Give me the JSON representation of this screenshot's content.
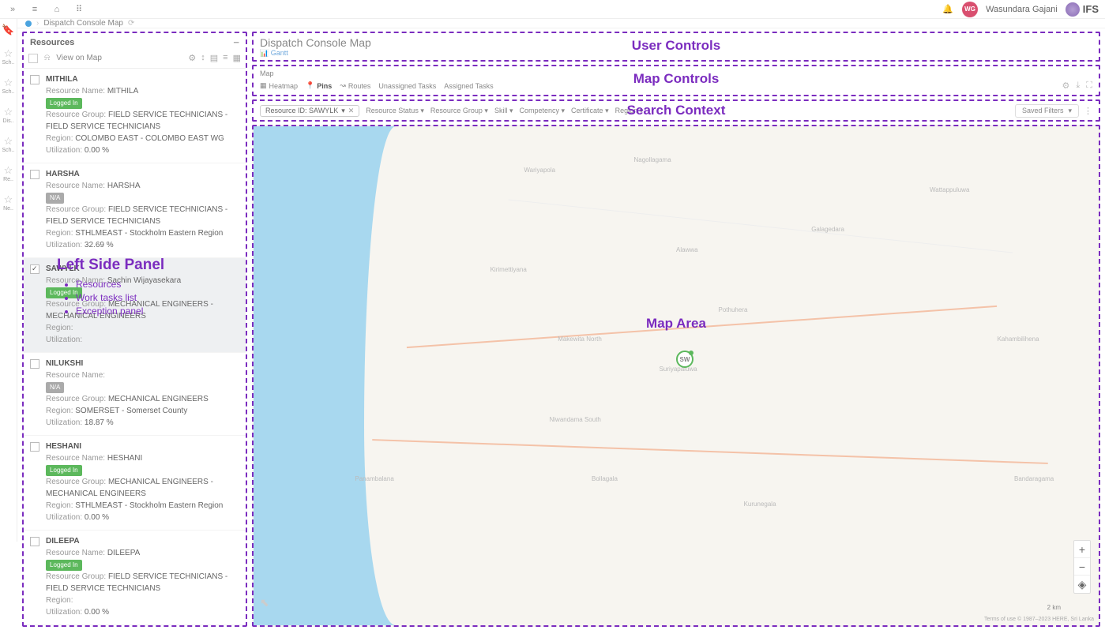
{
  "header": {
    "user_initials": "WG",
    "user_name": "Wasundara Gajani",
    "brand": "IFS"
  },
  "rail": {
    "items": [
      "Sch..",
      "Sch..",
      "Dis..",
      "Sch..",
      "Re..",
      "Ne.."
    ]
  },
  "breadcrumb": {
    "page": "Dispatch Console Map"
  },
  "left_panel": {
    "title": "Resources",
    "view_on_map": "View on Map",
    "resources": [
      {
        "name": "MITHILA",
        "resource_name": "MITHILA",
        "status": "Logged In",
        "status_color": "green",
        "group": "FIELD SERVICE TECHNICIANS - FIELD SERVICE TECHNICIANS",
        "region": "COLOMBO EAST - COLOMBO EAST WG",
        "utilization": "0.00 %",
        "checked": false
      },
      {
        "name": "HARSHA",
        "resource_name": "HARSHA",
        "status": "N/A",
        "status_color": "gray",
        "group": "FIELD SERVICE TECHNICIANS - FIELD SERVICE TECHNICIANS",
        "region": "STHLMEAST - Stockholm Eastern Region",
        "utilization": "32.69 %",
        "checked": false
      },
      {
        "name": "SAWYLK",
        "resource_name": "Sachin Wijayasekara",
        "status": "Logged In",
        "status_color": "green",
        "group": "MECHANICAL ENGINEERS - MECHANICAL ENGINEERS",
        "region": "",
        "utilization": "",
        "checked": true
      },
      {
        "name": "NILUKSHI",
        "resource_name": "",
        "status": "N/A",
        "status_color": "gray",
        "group": "MECHANICAL ENGINEERS",
        "region": "SOMERSET - Somerset County",
        "utilization": "18.87 %",
        "checked": false
      },
      {
        "name": "HESHANI",
        "resource_name": "HESHANI",
        "status": "Logged In",
        "status_color": "green",
        "group": "MECHANICAL ENGINEERS - MECHANICAL ENGINEERS",
        "region": "STHLMEAST - Stockholm Eastern Region",
        "utilization": "0.00 %",
        "checked": false
      },
      {
        "name": "DILEEPA",
        "resource_name": "DILEEPA",
        "status": "Logged In",
        "status_color": "green",
        "group": "FIELD SERVICE TECHNICIANS - FIELD SERVICE TECHNICIANS",
        "region": "",
        "utilization": "0.00 %",
        "checked": false
      }
    ]
  },
  "sections": {
    "user_controls_label": "User Controls",
    "map_controls_label": "Map Controls",
    "search_context_label": "Search Context",
    "map_area_label": "Map Area",
    "left_panel_label": "Left Side Panel",
    "left_panel_items": [
      "Resources",
      "Work tasks list",
      "Exception panel"
    ]
  },
  "user_controls": {
    "title": "Dispatch Console Map",
    "gantt_link": "Gantt"
  },
  "map_controls": {
    "tab": "Map",
    "buttons": {
      "heatmap": "Heatmap",
      "pins": "Pins",
      "routes": "Routes",
      "unassigned": "Unassigned Tasks",
      "assigned": "Assigned Tasks"
    }
  },
  "search_context": {
    "active_filter_label": "Resource ID: SAWYLK",
    "dropdowns": [
      "Resource Status",
      "Resource Group",
      "Skill",
      "Competency",
      "Certificate",
      "Region"
    ],
    "saved_filters": "Saved Filters"
  },
  "map": {
    "pin_label": "SW",
    "scale": "2 km",
    "attribution": "Terms of use   © 1987–2023 HERE, Sri Lanka",
    "places": [
      "Nagollagama",
      "Wariyapola",
      "Kurunegala",
      "Makewita North",
      "Niwandama South",
      "Panambalana",
      "Suriyapaluwa",
      "Wattappuluwa",
      "Pothuhera",
      "Kirimettiyana",
      "Kahambilihena",
      "Bandaragama",
      "Galagedara",
      "Alawwa",
      "Bollagala"
    ]
  },
  "labels": {
    "resource_name": "Resource Name:",
    "resource_group": "Resource Group:",
    "region": "Region:",
    "utilization": "Utilization:"
  }
}
